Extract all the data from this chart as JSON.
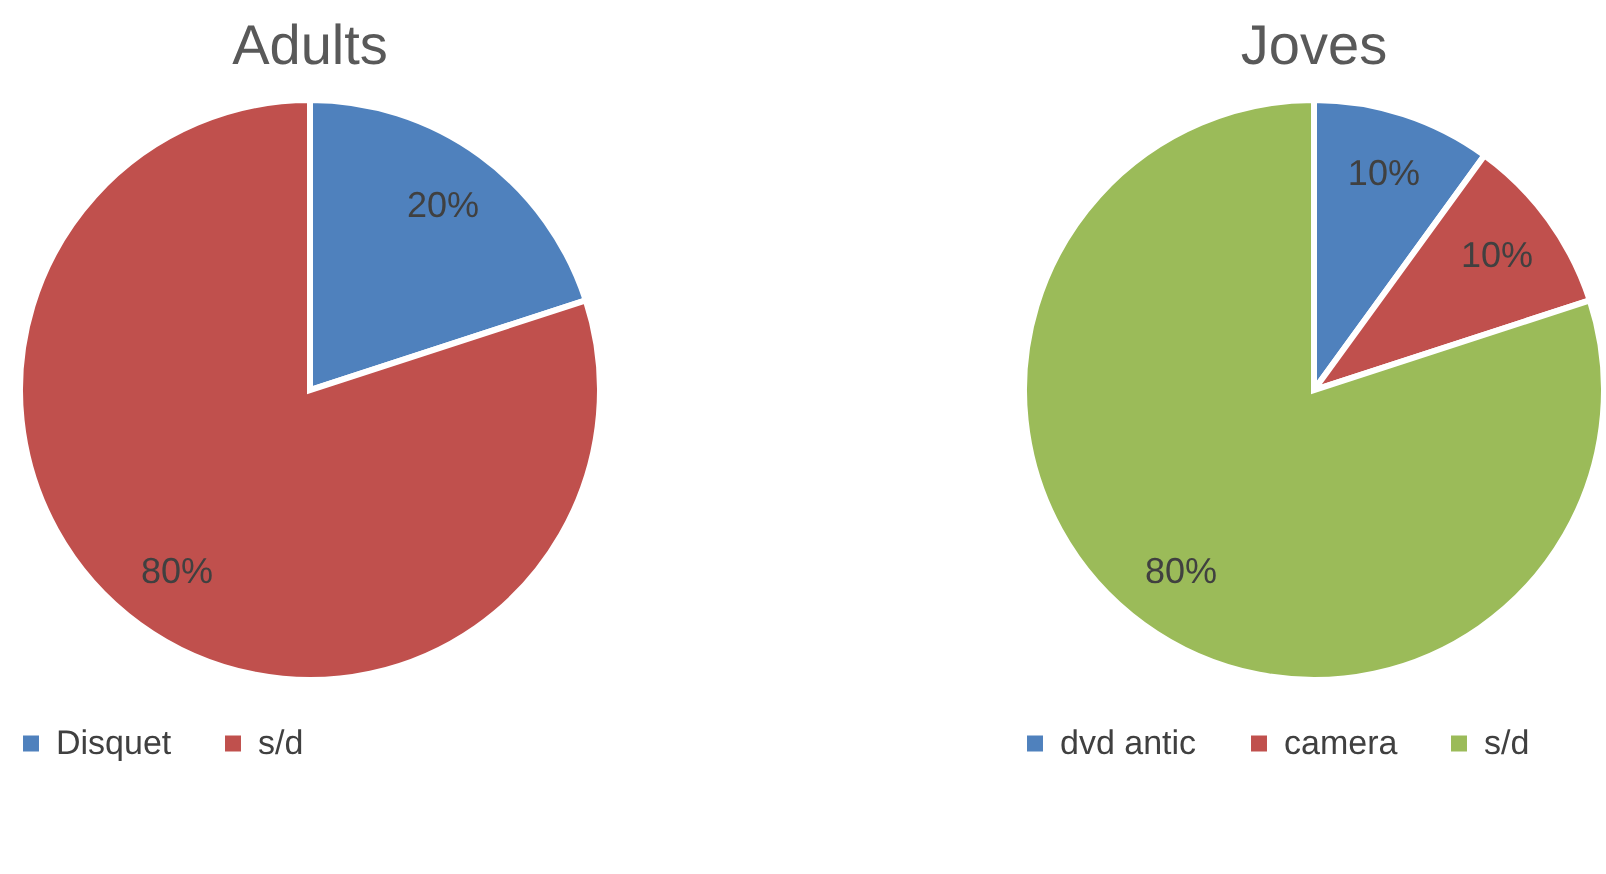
{
  "chart_data": [
    {
      "type": "pie",
      "title": "Adults",
      "categories": [
        "Disquet",
        "s/d"
      ],
      "values": [
        20,
        80
      ],
      "colors": [
        "#4f81bd",
        "#c0504d"
      ],
      "value_labels": [
        "20%",
        "80%"
      ],
      "legend": "bottom"
    },
    {
      "type": "pie",
      "title": "Joves",
      "categories": [
        "dvd antic",
        "camera",
        "s/d"
      ],
      "values": [
        10,
        10,
        80
      ],
      "colors": [
        "#4f81bd",
        "#c0504d",
        "#9bbb59"
      ],
      "value_labels": [
        "10%",
        "10%",
        "80%"
      ],
      "legend": "bottom"
    }
  ]
}
